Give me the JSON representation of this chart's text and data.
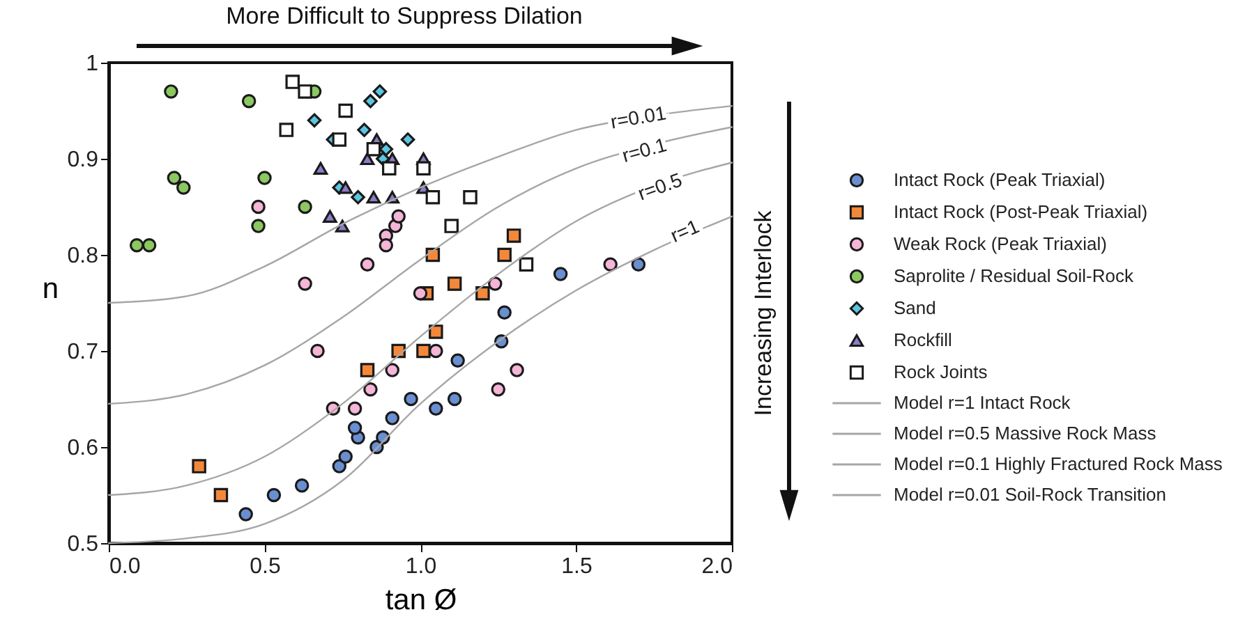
{
  "chart_data": {
    "type": "scatter",
    "xlabel": "tan Ø",
    "ylabel": "n",
    "xlim": [
      0,
      2
    ],
    "ylim": [
      0.5,
      1
    ],
    "xticks": [
      {
        "value": 0,
        "label": "0.0"
      },
      0.5,
      {
        "value": 1,
        "label": "1.0"
      },
      1.5,
      {
        "value": 2,
        "label": "2.0"
      }
    ],
    "yticks": [
      0.5,
      0.6,
      0.7,
      0.8,
      0.9,
      1
    ],
    "grid": false,
    "legend": "right",
    "series": [
      {
        "name": "Intact Rock (Peak Triaxial)",
        "type": "scatter",
        "marker": "circle",
        "color": "#6a8fd0",
        "x": [
          0.44,
          0.53,
          0.62,
          0.74,
          0.76,
          0.8,
          0.79,
          0.86,
          0.88,
          0.91,
          0.97,
          1.05,
          1.11,
          1.12,
          1.26,
          1.27,
          1.45,
          1.7
        ],
        "values": [
          0.53,
          0.55,
          0.56,
          0.58,
          0.59,
          0.61,
          0.62,
          0.6,
          0.61,
          0.63,
          0.65,
          0.64,
          0.65,
          0.69,
          0.71,
          0.74,
          0.78,
          0.79
        ]
      },
      {
        "name": "Intact Rock (Post-Peak Triaxial)",
        "type": "scatter",
        "marker": "square",
        "color": "#f4883a",
        "x": [
          0.29,
          0.36,
          0.83,
          0.93,
          1.01,
          1.05,
          1.02,
          1.11,
          1.2,
          1.04,
          1.27,
          1.3
        ],
        "values": [
          0.58,
          0.55,
          0.68,
          0.7,
          0.7,
          0.72,
          0.76,
          0.77,
          0.76,
          0.8,
          0.8,
          0.82
        ]
      },
      {
        "name": "Weak Rock (Peak Triaxial)",
        "type": "scatter",
        "marker": "circle",
        "color": "#f4b5d6",
        "x": [
          0.48,
          0.63,
          0.67,
          0.72,
          0.79,
          0.83,
          0.84,
          0.89,
          0.89,
          0.91,
          0.92,
          0.93,
          1.0,
          1.05,
          1.24,
          1.25,
          1.31,
          1.61
        ],
        "values": [
          0.85,
          0.77,
          0.7,
          0.64,
          0.64,
          0.79,
          0.66,
          0.82,
          0.81,
          0.68,
          0.83,
          0.84,
          0.76,
          0.7,
          0.77,
          0.66,
          0.68,
          0.79
        ]
      },
      {
        "name": "Saprolite / Residual Soil-Rock",
        "type": "scatter",
        "marker": "circle",
        "color": "#8cc862",
        "x": [
          0.2,
          0.45,
          0.66,
          0.21,
          0.24,
          0.5,
          0.63,
          0.48,
          0.09,
          0.13
        ],
        "values": [
          0.97,
          0.96,
          0.97,
          0.88,
          0.87,
          0.88,
          0.85,
          0.83,
          0.81,
          0.81
        ]
      },
      {
        "name": "Sand",
        "type": "scatter",
        "marker": "diamond",
        "color": "#5bc6e0",
        "x": [
          0.87,
          0.84,
          0.66,
          0.72,
          0.82,
          0.96,
          0.89,
          0.88,
          0.74,
          0.8
        ],
        "values": [
          0.97,
          0.96,
          0.94,
          0.92,
          0.93,
          0.92,
          0.91,
          0.9,
          0.87,
          0.86
        ]
      },
      {
        "name": "Rockfill",
        "type": "scatter",
        "marker": "triangle",
        "color": "#8e7cc6",
        "x": [
          0.68,
          0.86,
          0.83,
          0.91,
          1.01,
          0.76,
          0.85,
          0.91,
          1.01,
          0.71,
          0.75
        ],
        "values": [
          0.89,
          0.92,
          0.9,
          0.9,
          0.9,
          0.87,
          0.86,
          0.86,
          0.87,
          0.84,
          0.83
        ]
      },
      {
        "name": "Rock Joints",
        "type": "scatter",
        "marker": "square",
        "color": "#ffffff",
        "x": [
          0.59,
          0.63,
          0.76,
          0.57,
          0.74,
          0.85,
          0.9,
          1.01,
          1.04,
          1.16,
          1.1,
          1.34
        ],
        "values": [
          0.98,
          0.97,
          0.95,
          0.93,
          0.92,
          0.91,
          0.89,
          0.89,
          0.86,
          0.86,
          0.83,
          0.79
        ]
      },
      {
        "name": "Model r=1 Intact Rock",
        "type": "line",
        "marker": "none",
        "line_style": "solid",
        "color": "#a6a6a6",
        "x": [
          0,
          0.25,
          0.5,
          0.75,
          1,
          1.25,
          1.5,
          1.75,
          2
        ],
        "values": [
          0.5,
          0.505,
          0.52,
          0.565,
          0.645,
          0.71,
          0.763,
          0.805,
          0.84
        ]
      },
      {
        "name": "Model r=0.5 Massive Rock Mass",
        "type": "line",
        "marker": "none",
        "line_style": "solid",
        "color": "#a6a6a6",
        "x": [
          0,
          0.25,
          0.5,
          0.75,
          1,
          1.25,
          1.5,
          1.75,
          2
        ],
        "values": [
          0.55,
          0.56,
          0.59,
          0.645,
          0.715,
          0.78,
          0.835,
          0.872,
          0.896
        ]
      },
      {
        "name": "Model r=0.1 Highly Fractured Rock Mass",
        "type": "line",
        "marker": "none",
        "line_style": "solid",
        "color": "#a6a6a6",
        "x": [
          0,
          0.25,
          0.5,
          0.75,
          1,
          1.25,
          1.5,
          1.75,
          2
        ],
        "values": [
          0.645,
          0.655,
          0.685,
          0.735,
          0.795,
          0.85,
          0.89,
          0.915,
          0.933
        ]
      },
      {
        "name": "Model r=0.01 Soil-Rock Transition",
        "type": "line",
        "marker": "none",
        "line_style": "solid",
        "color": "#a6a6a6",
        "x": [
          0,
          0.25,
          0.5,
          0.75,
          1,
          1.25,
          1.5,
          1.75,
          2
        ],
        "values": [
          0.75,
          0.757,
          0.788,
          0.832,
          0.87,
          0.902,
          0.93,
          0.945,
          0.955
        ]
      }
    ],
    "annotations": [
      "More Difficult to Suppress Dilation",
      "Increasing Interlock",
      {
        "text": "r=0.01",
        "x": 1.7,
        "y": 0.942
      },
      {
        "text": "r=0.1",
        "x": 1.72,
        "y": 0.908
      },
      {
        "text": "r=0.5",
        "x": 1.77,
        "y": 0.87
      },
      {
        "text": "r=1",
        "x": 1.85,
        "y": 0.824
      }
    ]
  }
}
